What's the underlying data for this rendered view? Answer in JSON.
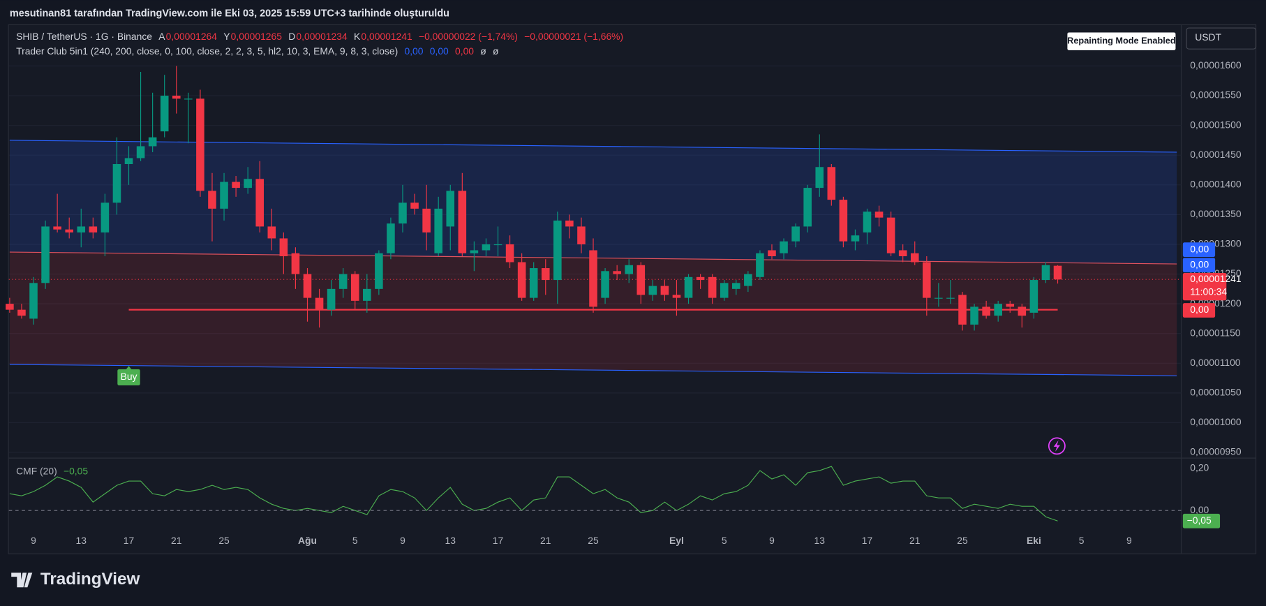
{
  "header": "mesutinan81 tarafından TradingView.com ile Eki 03, 2025 15:59 UTC+3 tarihinde oluşturuldu",
  "footer_logo": "TradingView",
  "chart_data": [
    {
      "type": "candlestick",
      "symbol": "SHIB / TetherUS · 1G · Binance",
      "ohlc_legend": [
        {
          "key": "A",
          "value": "0,00001264"
        },
        {
          "key": "Y",
          "value": "0,00001265"
        },
        {
          "key": "D",
          "value": "0,00001234"
        },
        {
          "key": "K",
          "value": "0,00001241"
        }
      ],
      "change": [
        "−0,00000022 (−1,74%)",
        "−0,00000021 (−1,66%)"
      ],
      "indicator": {
        "name": "Trader Club 5in1 (240, 200, close, 0, 100, close, 2, 2, 3, 5, hl2, 10, 3, EMA, 9, 8, 3, close)",
        "values": [
          {
            "text": "0,00",
            "color": "#2962ff"
          },
          {
            "text": "0,00",
            "color": "#2962ff"
          },
          {
            "text": "0,00",
            "color": "#f23645"
          },
          {
            "text": "ø",
            "color": "#d1d4dc"
          },
          {
            "text": "ø",
            "color": "#d1d4dc"
          }
        ]
      },
      "repaint_badge": "Repainting Mode Enabled",
      "currency": "USDT",
      "categories": [
        null,
        null,
        "9",
        null,
        null,
        null,
        "13",
        null,
        null,
        null,
        "17",
        null,
        null,
        null,
        "21",
        null,
        null,
        null,
        "25",
        null,
        null,
        null,
        null,
        null,
        null,
        "Ağu",
        null,
        null,
        null,
        "5",
        null,
        null,
        null,
        "9",
        null,
        null,
        null,
        "13",
        null,
        null,
        null,
        "17",
        null,
        null,
        null,
        "21",
        null,
        null,
        null,
        "25",
        null,
        null,
        null,
        null,
        null,
        null,
        "Eyl",
        null,
        null,
        null,
        "5",
        null,
        null,
        null,
        "9",
        null,
        null,
        null,
        "13",
        null,
        null,
        null,
        "17",
        null,
        null,
        null,
        "21",
        null,
        null,
        null,
        "25",
        null,
        null,
        null,
        null,
        null,
        "Eki",
        null,
        null,
        null,
        "5",
        null,
        null,
        null,
        "9",
        null,
        null,
        null,
        null
      ],
      "series": [
        {
          "name": "SHIB / TetherUS",
          "up_color": "#089981",
          "down_color": "#f23645",
          "open": [
            1.2e-05,
            1.19e-05,
            1.175e-05,
            1.235e-05,
            1.33e-05,
            1.325e-05,
            1.32e-05,
            1.33e-05,
            1.32e-05,
            1.37e-05,
            1.435e-05,
            1.445e-05,
            1.465e-05,
            1.49e-05,
            1.55e-05,
            1.545e-05,
            1.545e-05,
            1.39e-05,
            1.36e-05,
            1.405e-05,
            1.395e-05,
            1.41e-05,
            1.33e-05,
            1.31e-05,
            1.285e-05,
            1.25e-05,
            1.21e-05,
            1.19e-05,
            1.225e-05,
            1.25e-05,
            1.205e-05,
            1.225e-05,
            1.285e-05,
            1.335e-05,
            1.37e-05,
            1.36e-05,
            1.285e-05,
            1.33e-05,
            1.39e-05,
            1.285e-05,
            1.29e-05,
            1.3e-05,
            1.3e-05,
            1.27e-05,
            1.21e-05,
            1.26e-05,
            1.24e-05,
            1.34e-05,
            1.33e-05,
            1.29e-05,
            1.21e-05,
            1.255e-05,
            1.25e-05,
            1.265e-05,
            1.215e-05,
            1.23e-05,
            1.215e-05,
            1.21e-05,
            1.245e-05,
            1.245e-05,
            1.21e-05,
            1.225e-05,
            1.23e-05,
            1.245e-05,
            1.29e-05,
            1.285e-05,
            1.305e-05,
            1.33e-05,
            1.395e-05,
            1.43e-05,
            1.375e-05,
            1.305e-05,
            1.32e-05,
            1.355e-05,
            1.345e-05,
            1.29e-05,
            1.285e-05,
            1.27e-05,
            1.21e-05,
            1.21e-05,
            1.215e-05,
            1.165e-05,
            1.195e-05,
            1.18e-05,
            1.2e-05,
            1.195e-05,
            1.185e-05,
            1.24e-05,
            1.264e-05,
            null,
            null,
            null,
            null,
            null,
            null,
            null,
            null,
            null,
            null
          ],
          "high": [
            1.21e-05,
            1.2e-05,
            1.245e-05,
            1.34e-05,
            1.385e-05,
            1.345e-05,
            1.36e-05,
            1.345e-05,
            1.385e-05,
            1.48e-05,
            1.465e-05,
            1.59e-05,
            1.555e-05,
            1.585e-05,
            1.6e-05,
            1.555e-05,
            1.56e-05,
            1.42e-05,
            1.42e-05,
            1.415e-05,
            1.43e-05,
            1.44e-05,
            1.36e-05,
            1.32e-05,
            1.295e-05,
            1.26e-05,
            1.225e-05,
            1.24e-05,
            1.26e-05,
            1.255e-05,
            1.25e-05,
            1.29e-05,
            1.345e-05,
            1.4e-05,
            1.385e-05,
            1.4e-05,
            1.38e-05,
            1.4e-05,
            1.42e-05,
            1.305e-05,
            1.31e-05,
            1.33e-05,
            1.315e-05,
            1.285e-05,
            1.27e-05,
            1.275e-05,
            1.355e-05,
            1.35e-05,
            1.345e-05,
            1.31e-05,
            1.26e-05,
            1.265e-05,
            1.275e-05,
            1.27e-05,
            1.24e-05,
            1.24e-05,
            1.24e-05,
            1.25e-05,
            1.25e-05,
            1.25e-05,
            1.24e-05,
            1.24e-05,
            1.255e-05,
            1.29e-05,
            1.3e-05,
            1.31e-05,
            1.335e-05,
            1.4e-05,
            1.485e-05,
            1.435e-05,
            1.38e-05,
            1.325e-05,
            1.36e-05,
            1.365e-05,
            1.355e-05,
            1.3e-05,
            1.305e-05,
            1.28e-05,
            1.235e-05,
            1.24e-05,
            1.22e-05,
            1.2e-05,
            1.205e-05,
            1.205e-05,
            1.205e-05,
            1.2e-05,
            1.245e-05,
            1.27e-05,
            1.265e-05,
            null,
            null,
            null,
            null,
            null,
            null,
            null,
            null,
            null,
            null
          ],
          "low": [
            1.185e-05,
            1.175e-05,
            1.165e-05,
            1.225e-05,
            1.32e-05,
            1.31e-05,
            1.295e-05,
            1.31e-05,
            1.28e-05,
            1.35e-05,
            1.4e-05,
            1.44e-05,
            1.455e-05,
            1.48e-05,
            1.52e-05,
            1.47e-05,
            1.38e-05,
            1.305e-05,
            1.34e-05,
            1.38e-05,
            1.385e-05,
            1.32e-05,
            1.29e-05,
            1.25e-05,
            1.225e-05,
            1.17e-05,
            1.16e-05,
            1.18e-05,
            1.21e-05,
            1.19e-05,
            1.185e-05,
            1.215e-05,
            1.275e-05,
            1.32e-05,
            1.35e-05,
            1.29e-05,
            1.28e-05,
            1.29e-05,
            1.28e-05,
            1.255e-05,
            1.28e-05,
            1.28e-05,
            1.26e-05,
            1.205e-05,
            1.205e-05,
            1.215e-05,
            1.2e-05,
            1.31e-05,
            1.285e-05,
            1.185e-05,
            1.2e-05,
            1.24e-05,
            1.235e-05,
            1.2e-05,
            1.205e-05,
            1.205e-05,
            1.18e-05,
            1.2e-05,
            1.225e-05,
            1.2e-05,
            1.205e-05,
            1.215e-05,
            1.22e-05,
            1.24e-05,
            1.275e-05,
            1.275e-05,
            1.295e-05,
            1.32e-05,
            1.38e-05,
            1.365e-05,
            1.295e-05,
            1.29e-05,
            1.3e-05,
            1.33e-05,
            1.28e-05,
            1.27e-05,
            1.265e-05,
            1.18e-05,
            1.195e-05,
            1.2e-05,
            1.155e-05,
            1.155e-05,
            1.175e-05,
            1.17e-05,
            1.185e-05,
            1.16e-05,
            1.175e-05,
            1.235e-05,
            1.234e-05,
            null,
            null,
            null,
            null,
            null,
            null,
            null,
            null,
            null,
            null
          ],
          "close": [
            1.19e-05,
            1.18e-05,
            1.235e-05,
            1.33e-05,
            1.325e-05,
            1.32e-05,
            1.33e-05,
            1.32e-05,
            1.37e-05,
            1.435e-05,
            1.445e-05,
            1.465e-05,
            1.48e-05,
            1.55e-05,
            1.545e-05,
            1.545e-05,
            1.39e-05,
            1.36e-05,
            1.405e-05,
            1.395e-05,
            1.41e-05,
            1.33e-05,
            1.31e-05,
            1.28e-05,
            1.25e-05,
            1.21e-05,
            1.19e-05,
            1.225e-05,
            1.25e-05,
            1.205e-05,
            1.225e-05,
            1.285e-05,
            1.335e-05,
            1.37e-05,
            1.36e-05,
            1.32e-05,
            1.36e-05,
            1.39e-05,
            1.285e-05,
            1.29e-05,
            1.3e-05,
            1.3e-05,
            1.27e-05,
            1.21e-05,
            1.26e-05,
            1.24e-05,
            1.34e-05,
            1.33e-05,
            1.3e-05,
            1.195e-05,
            1.255e-05,
            1.25e-05,
            1.265e-05,
            1.215e-05,
            1.23e-05,
            1.215e-05,
            1.21e-05,
            1.245e-05,
            1.24e-05,
            1.21e-05,
            1.235e-05,
            1.235e-05,
            1.25e-05,
            1.285e-05,
            1.28e-05,
            1.305e-05,
            1.33e-05,
            1.395e-05,
            1.43e-05,
            1.375e-05,
            1.305e-05,
            1.315e-05,
            1.355e-05,
            1.345e-05,
            1.285e-05,
            1.28e-05,
            1.27e-05,
            1.21e-05,
            1.21e-05,
            1.21e-05,
            1.165e-05,
            1.195e-05,
            1.18e-05,
            1.2e-05,
            1.195e-05,
            1.18e-05,
            1.24e-05,
            1.265e-05,
            1.241e-05,
            null,
            null,
            null,
            null,
            null,
            null,
            null,
            null,
            null,
            null
          ]
        }
      ],
      "ylim": [
        9.405e-06,
        1.67e-05
      ],
      "yticks": [
        {
          "value": 9.5e-06,
          "label": "0,00000950"
        },
        {
          "value": 1e-05,
          "label": "0,00001000"
        },
        {
          "value": 1.05e-05,
          "label": "0,00001050"
        },
        {
          "value": 1.1e-05,
          "label": "0,00001100"
        },
        {
          "value": 1.15e-05,
          "label": "0,00001150"
        },
        {
          "value": 1.2e-05,
          "label": "0,00001200"
        },
        {
          "value": 1.25e-05,
          "label": "0,00001250"
        },
        {
          "value": 1.3e-05,
          "label": "0,00001300"
        },
        {
          "value": 1.35e-05,
          "label": "0,00001350"
        },
        {
          "value": 1.4e-05,
          "label": "0,00001400"
        },
        {
          "value": 1.45e-05,
          "label": "0,00001450"
        },
        {
          "value": 1.5e-05,
          "label": "0,00001500"
        },
        {
          "value": 1.55e-05,
          "label": "0,00001550"
        },
        {
          "value": 1.6e-05,
          "label": "0,00001600"
        }
      ],
      "grid": true,
      "price_tag": {
        "value": 1.241e-05,
        "label": "0,00001241",
        "countdown": "11:00:34",
        "color": "#f23645"
      },
      "axis_tags": [
        {
          "label": "0,00",
          "value": 1.291e-05,
          "color": "#2962ff"
        },
        {
          "label": "0,00",
          "value": 1.265e-05,
          "color": "#2962ff"
        },
        {
          "label": "0,00",
          "value": 1.189e-05,
          "color": "#f23645"
        }
      ],
      "channel": {
        "upper": [
          1.475e-05,
          1.455e-05
        ],
        "middle": [
          1.287e-05,
          1.267e-05
        ],
        "lower": [
          1.098e-05,
          1.079e-05
        ]
      },
      "support_line": {
        "value": 1.19e-05,
        "from_index": 10,
        "to_index": 88,
        "color": "#f23645"
      },
      "signals": [
        {
          "index": 10,
          "label": "Buy",
          "color": "#4caf50"
        }
      ]
    },
    {
      "type": "line",
      "title": "CMF (20)",
      "last_label": "−0,05",
      "series": [
        {
          "name": "CMF (20)",
          "color": "#4caf50",
          "values": [
            0.08,
            0.07,
            0.09,
            0.12,
            0.16,
            0.14,
            0.11,
            0.04,
            0.08,
            0.12,
            0.14,
            0.14,
            0.08,
            0.07,
            0.1,
            0.09,
            0.1,
            0.12,
            0.1,
            0.11,
            0.1,
            0.06,
            0.03,
            0.01,
            0.0,
            0.01,
            0.0,
            -0.01,
            0.02,
            0.0,
            -0.02,
            0.07,
            0.1,
            0.09,
            0.06,
            0.0,
            0.06,
            0.11,
            0.03,
            0.0,
            0.01,
            0.04,
            0.06,
            0.0,
            0.05,
            0.06,
            0.16,
            0.16,
            0.12,
            0.08,
            0.1,
            0.06,
            0.04,
            -0.01,
            0.0,
            0.04,
            0.0,
            0.03,
            0.07,
            0.05,
            0.08,
            0.09,
            0.12,
            0.19,
            0.15,
            0.17,
            0.12,
            0.18,
            0.19,
            0.21,
            0.12,
            0.14,
            0.15,
            0.16,
            0.13,
            0.14,
            0.14,
            0.07,
            0.06,
            0.06,
            0.01,
            0.03,
            0.02,
            0.01,
            0.03,
            0.02,
            0.02,
            -0.03,
            -0.05,
            null,
            null,
            null,
            null,
            null,
            null,
            null,
            null,
            null,
            null
          ]
        }
      ],
      "ylim": [
        -0.108,
        0.238
      ],
      "yticks": [
        {
          "value": 0.2,
          "label": "0,20"
        },
        {
          "value": 0,
          "label": "0,00"
        }
      ]
    }
  ]
}
